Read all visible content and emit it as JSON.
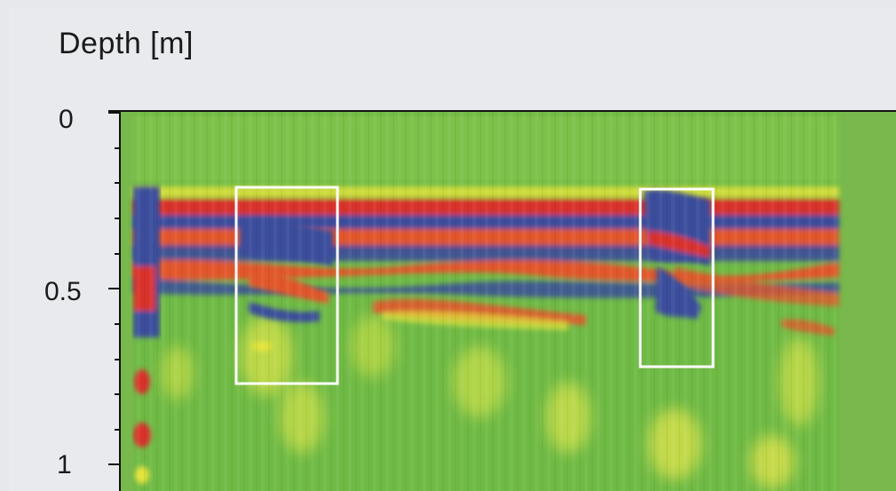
{
  "chart_data": {
    "type": "heatmap",
    "title": "",
    "ylabel": "Depth [m]",
    "y_reversed": true,
    "ylim": [
      0,
      1.05
    ],
    "y_ticks": [
      {
        "value": 0,
        "label": "0"
      },
      {
        "value": 0.5,
        "label": "0.5"
      },
      {
        "value": 1,
        "label": "1"
      }
    ],
    "y_minor_step": 0.1,
    "colormap": [
      "#3a4e9c",
      "#2a9a8a",
      "#7cc24a",
      "#e3e33a",
      "#e2572b",
      "#d9302a"
    ],
    "background_color": "#78b84c",
    "highlight_boxes": [
      {
        "label": "",
        "y_top": 0.2,
        "y_bottom": 0.8
      },
      {
        "label": "",
        "y_top": 0.22,
        "y_bottom": 0.75
      }
    ]
  }
}
